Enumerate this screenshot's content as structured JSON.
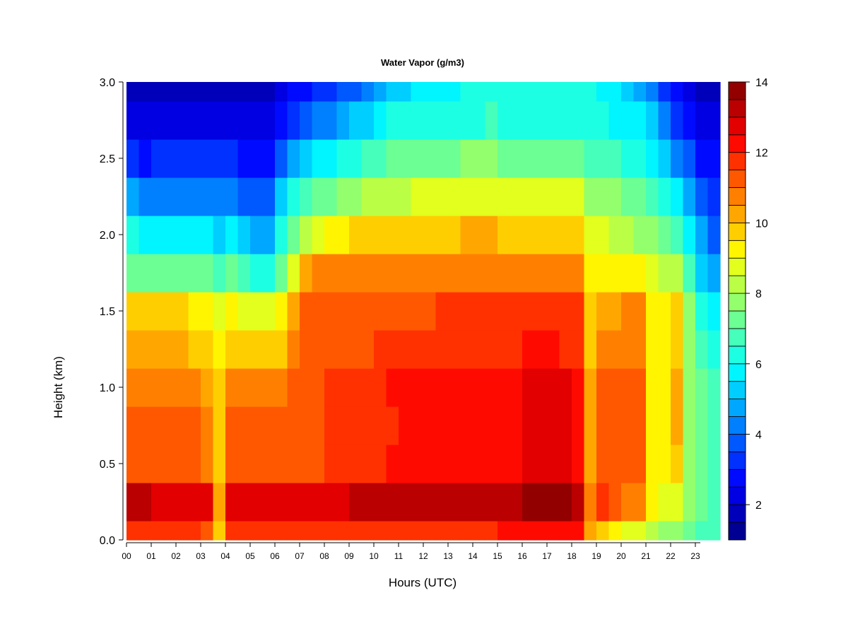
{
  "chart_data": {
    "type": "heatmap",
    "title": "Water Vapor (g/m3)",
    "xlabel": "Hours (UTC)",
    "ylabel": "Height (km)",
    "xlim": [
      0,
      24
    ],
    "ylim": [
      0,
      3.0
    ],
    "x_ticks": [
      0,
      1,
      2,
      3,
      4,
      5,
      6,
      7,
      8,
      9,
      10,
      11,
      12,
      13,
      14,
      15,
      16,
      17,
      18,
      19,
      20,
      21,
      22,
      23
    ],
    "x_tick_labels": [
      "00",
      "01",
      "02",
      "03",
      "04",
      "05",
      "06",
      "07",
      "08",
      "09",
      "10",
      "11",
      "12",
      "13",
      "14",
      "15",
      "16",
      "17",
      "18",
      "19",
      "20",
      "21",
      "22",
      "23"
    ],
    "y_ticks": [
      0,
      0.5,
      1.0,
      1.5,
      2.0,
      2.5,
      3.0
    ],
    "y_tick_labels": [
      "0.0",
      "0.5",
      "1.0",
      "1.5",
      "2.0",
      "2.5",
      "3.0"
    ],
    "colorbar": {
      "min": 1,
      "max": 14,
      "levels": 26,
      "ticks": [
        2,
        4,
        6,
        8,
        10,
        12,
        14
      ],
      "tick_labels": [
        "2",
        "4",
        "6",
        "8",
        "10",
        "12",
        "14"
      ],
      "colormap": "jet"
    },
    "time_hours": [
      0,
      0.5,
      1,
      1.5,
      2,
      2.5,
      3,
      3.5,
      4,
      4.5,
      5,
      5.5,
      6,
      6.5,
      7,
      7.5,
      8,
      8.5,
      9,
      9.5,
      10,
      10.5,
      11,
      11.5,
      12,
      12.5,
      13,
      13.5,
      14,
      14.5,
      15,
      15.5,
      16,
      16.5,
      17,
      17.5,
      18,
      18.5,
      19,
      19.5,
      20,
      20.5,
      21,
      21.5,
      22,
      22.5,
      23,
      23.5
    ],
    "heights_km": [
      0.0,
      0.25,
      0.5,
      0.75,
      1.0,
      1.25,
      1.5,
      1.75,
      2.0,
      2.25,
      2.5,
      2.75,
      3.0
    ],
    "values_note": "",
    "values": [
      [
        11.5,
        13.0,
        11.0,
        11.0,
        10.5,
        10.0,
        9.5,
        7.0,
        6.0,
        4.5,
        3.0,
        2.0,
        1.8
      ],
      [
        11.5,
        13.0,
        11.0,
        11.0,
        10.5,
        10.0,
        9.5,
        7.0,
        5.5,
        4.0,
        2.8,
        2.0,
        1.6
      ],
      [
        11.5,
        12.8,
        11.0,
        11.0,
        10.5,
        10.0,
        9.5,
        7.0,
        5.5,
        4.0,
        3.0,
        2.0,
        1.6
      ],
      [
        11.5,
        12.8,
        11.0,
        11.0,
        10.5,
        10.0,
        9.5,
        7.0,
        5.5,
        4.0,
        3.0,
        2.0,
        1.6
      ],
      [
        11.5,
        12.8,
        11.2,
        11.0,
        10.5,
        10.0,
        9.5,
        7.0,
        5.5,
        4.0,
        3.0,
        2.0,
        1.6
      ],
      [
        11.5,
        12.8,
        11.0,
        11.0,
        10.5,
        9.8,
        9.2,
        7.0,
        5.5,
        4.0,
        3.0,
        2.0,
        1.6
      ],
      [
        11.0,
        12.5,
        10.5,
        10.5,
        10.0,
        9.5,
        9.0,
        7.0,
        5.5,
        4.0,
        3.2,
        2.2,
        1.6
      ],
      [
        9.5,
        10.0,
        9.5,
        9.5,
        9.5,
        9.0,
        8.5,
        6.5,
        5.0,
        4.0,
        3.2,
        2.2,
        1.6
      ],
      [
        11.5,
        12.8,
        11.0,
        11.0,
        10.5,
        9.8,
        9.0,
        7.0,
        5.5,
        4.0,
        3.0,
        2.0,
        1.8
      ],
      [
        11.5,
        12.8,
        11.0,
        11.0,
        10.5,
        9.5,
        8.5,
        6.5,
        5.0,
        3.5,
        2.8,
        2.0,
        1.8
      ],
      [
        11.5,
        12.8,
        11.0,
        11.0,
        10.5,
        9.5,
        8.5,
        6.0,
        4.5,
        3.5,
        2.8,
        2.0,
        1.8
      ],
      [
        11.5,
        12.5,
        11.0,
        11.0,
        10.5,
        9.5,
        8.5,
        6.0,
        4.5,
        3.5,
        2.8,
        2.0,
        1.8
      ],
      [
        11.5,
        12.5,
        11.0,
        11.0,
        10.5,
        9.8,
        9.0,
        7.0,
        6.0,
        5.0,
        3.5,
        2.5,
        2.0
      ],
      [
        11.5,
        12.5,
        11.2,
        11.0,
        11.0,
        10.5,
        10.0,
        8.5,
        7.0,
        6.0,
        4.5,
        3.0,
        2.5
      ],
      [
        11.5,
        12.5,
        11.2,
        11.2,
        11.0,
        11.0,
        11.0,
        10.0,
        8.0,
        6.5,
        5.0,
        3.5,
        2.8
      ],
      [
        11.5,
        12.5,
        11.2,
        11.2,
        11.2,
        11.0,
        11.0,
        10.5,
        8.5,
        7.0,
        5.5,
        4.0,
        3.0
      ],
      [
        11.5,
        12.8,
        11.5,
        11.5,
        11.5,
        11.0,
        11.0,
        10.5,
        9.0,
        7.0,
        5.5,
        4.0,
        3.2
      ],
      [
        11.5,
        12.8,
        11.5,
        11.5,
        11.5,
        11.2,
        11.0,
        10.5,
        9.0,
        7.5,
        6.0,
        4.5,
        3.5
      ],
      [
        11.5,
        13.0,
        11.5,
        11.5,
        11.8,
        11.2,
        11.2,
        10.5,
        9.5,
        7.5,
        6.0,
        5.0,
        3.8
      ],
      [
        11.5,
        13.0,
        11.8,
        11.8,
        11.8,
        11.2,
        11.2,
        10.5,
        9.5,
        8.0,
        6.5,
        5.0,
        4.0
      ],
      [
        11.5,
        13.0,
        11.8,
        11.8,
        11.8,
        11.5,
        11.2,
        10.5,
        9.5,
        8.0,
        6.5,
        5.5,
        4.5
      ],
      [
        11.5,
        13.0,
        12.0,
        11.8,
        12.0,
        11.5,
        11.2,
        10.5,
        9.5,
        8.0,
        7.0,
        6.0,
        5.0
      ],
      [
        11.5,
        13.0,
        12.0,
        12.0,
        12.0,
        11.5,
        11.2,
        10.5,
        9.5,
        8.0,
        7.0,
        6.0,
        5.0
      ],
      [
        11.5,
        13.0,
        12.0,
        12.0,
        12.0,
        11.5,
        11.2,
        10.5,
        9.5,
        8.5,
        7.0,
        6.0,
        5.5
      ],
      [
        11.8,
        13.0,
        12.0,
        12.0,
        12.0,
        11.5,
        11.2,
        10.5,
        9.5,
        8.5,
        7.0,
        6.0,
        5.5
      ],
      [
        11.8,
        13.0,
        12.0,
        12.0,
        12.0,
        11.5,
        11.5,
        10.5,
        9.5,
        8.5,
        7.0,
        6.0,
        5.5
      ],
      [
        11.8,
        13.0,
        12.0,
        12.0,
        12.0,
        11.8,
        11.5,
        10.5,
        9.8,
        8.5,
        7.2,
        6.0,
        5.8
      ],
      [
        11.8,
        13.0,
        12.0,
        12.0,
        12.0,
        11.8,
        11.5,
        10.5,
        10.0,
        8.5,
        7.5,
        6.0,
        6.0
      ],
      [
        11.8,
        13.0,
        12.2,
        12.2,
        12.2,
        11.8,
        11.5,
        10.8,
        10.0,
        8.5,
        7.5,
        6.2,
        6.0
      ],
      [
        11.8,
        13.0,
        12.2,
        12.2,
        12.2,
        11.8,
        11.5,
        10.8,
        10.0,
        8.8,
        7.5,
        6.5,
        6.0
      ],
      [
        12.0,
        13.0,
        12.2,
        12.2,
        12.2,
        11.8,
        11.5,
        10.8,
        9.8,
        8.5,
        7.0,
        6.0,
        6.0
      ],
      [
        12.0,
        13.2,
        12.2,
        12.2,
        12.2,
        11.8,
        11.5,
        10.8,
        9.8,
        8.5,
        7.0,
        6.0,
        6.0
      ],
      [
        12.0,
        13.5,
        12.5,
        12.5,
        12.5,
        12.0,
        11.8,
        10.8,
        9.8,
        8.5,
        7.0,
        6.0,
        6.2
      ],
      [
        12.0,
        13.8,
        12.5,
        12.5,
        12.8,
        12.0,
        11.8,
        10.8,
        9.5,
        8.5,
        7.0,
        6.0,
        6.2
      ],
      [
        12.0,
        13.8,
        12.8,
        12.5,
        12.8,
        12.0,
        11.8,
        10.8,
        9.5,
        8.5,
        7.0,
        6.2,
        6.2
      ],
      [
        12.0,
        13.5,
        12.5,
        12.5,
        12.5,
        11.8,
        11.5,
        10.8,
        9.5,
        8.5,
        7.0,
        6.0,
        6.0
      ],
      [
        12.0,
        13.2,
        12.2,
        12.2,
        12.2,
        11.8,
        11.5,
        10.5,
        9.5,
        8.5,
        7.0,
        6.0,
        6.2
      ],
      [
        10.0,
        10.5,
        10.0,
        10.0,
        10.0,
        9.8,
        9.5,
        9.0,
        8.5,
        7.5,
        6.5,
        6.0,
        6.0
      ],
      [
        9.5,
        11.5,
        11.0,
        11.0,
        11.0,
        10.5,
        10.0,
        9.0,
        8.5,
        7.5,
        6.5,
        6.0,
        5.8
      ],
      [
        9.0,
        11.0,
        11.0,
        11.0,
        11.0,
        10.5,
        10.0,
        9.0,
        8.0,
        7.5,
        6.5,
        5.8,
        5.5
      ],
      [
        8.5,
        10.5,
        11.0,
        11.0,
        11.2,
        10.5,
        10.5,
        9.0,
        8.0,
        7.0,
        6.0,
        5.5,
        5.0
      ],
      [
        8.5,
        10.5,
        11.0,
        11.0,
        11.2,
        10.5,
        10.5,
        9.0,
        7.5,
        7.0,
        6.0,
        5.5,
        4.5
      ],
      [
        8.0,
        9.0,
        9.0,
        9.2,
        9.2,
        9.0,
        9.0,
        8.5,
        7.5,
        6.5,
        5.5,
        5.0,
        4.0
      ],
      [
        7.5,
        8.5,
        9.0,
        9.0,
        9.0,
        9.0,
        9.0,
        8.0,
        7.0,
        6.0,
        5.0,
        4.0,
        3.0
      ],
      [
        7.5,
        8.5,
        9.5,
        10.0,
        10.0,
        9.8,
        9.5,
        8.0,
        6.5,
        5.5,
        4.0,
        3.0,
        2.5
      ],
      [
        7.0,
        7.5,
        7.5,
        7.5,
        7.5,
        7.5,
        7.5,
        6.5,
        5.5,
        4.5,
        3.5,
        2.5,
        2.0
      ],
      [
        6.8,
        7.0,
        7.0,
        7.0,
        7.0,
        6.5,
        6.0,
        5.0,
        4.5,
        3.5,
        2.5,
        2.0,
        1.8
      ],
      [
        6.5,
        6.8,
        6.5,
        6.5,
        6.5,
        6.0,
        5.5,
        4.5,
        3.5,
        3.0,
        2.5,
        2.0,
        1.6
      ]
    ]
  }
}
